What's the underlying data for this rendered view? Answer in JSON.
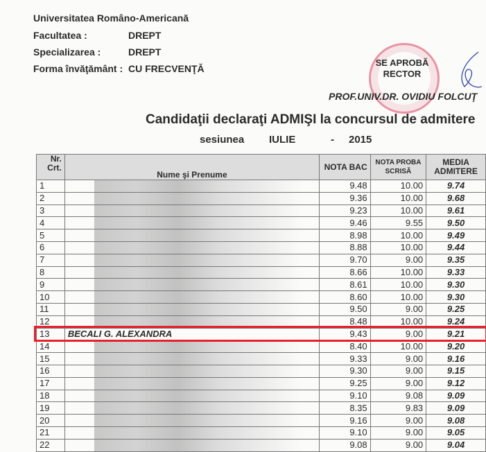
{
  "header": {
    "university": "Universitatea Româno-Americană",
    "faculty_label": "Facultatea :",
    "faculty": "DREPT",
    "spec_label": "Specializarea :",
    "spec": "DREPT",
    "form_label": "Forma învăţământ :",
    "form": "CU FRECVENŢĂ"
  },
  "approval": {
    "line1": "SE APROBĂ",
    "line2": "RECTOR",
    "name": "PROF.UNIV.DR. OVIDIU FOLCUŢ"
  },
  "title": "Candidaţii declaraţi ADMIŞI la concursul de admitere",
  "session": {
    "label": "sesiunea",
    "month": "IULIE",
    "dash": "-",
    "year": "2015"
  },
  "table": {
    "headers": {
      "nr": "Nr. Crt.",
      "name": "Nume şi Prenume",
      "bac": "NOTA BAC",
      "proba": "NOTA PROBA SCRISĂ",
      "media": "MEDIA ADMITERE"
    },
    "rows": [
      [
        "1",
        "",
        "9.48",
        "10.00",
        "9.74"
      ],
      [
        "2",
        "",
        "9.36",
        "10.00",
        "9.68"
      ],
      [
        "3",
        "",
        "9.23",
        "10.00",
        "9.61"
      ],
      [
        "4",
        "",
        "9.46",
        "9.55",
        "9.50"
      ],
      [
        "5",
        "",
        "8.98",
        "10.00",
        "9.49"
      ],
      [
        "6",
        "",
        "8.88",
        "10.00",
        "9.44"
      ],
      [
        "7",
        "",
        "9.70",
        "9.00",
        "9.35"
      ],
      [
        "8",
        "",
        "8.66",
        "10.00",
        "9.33"
      ],
      [
        "9",
        "",
        "8.61",
        "10.00",
        "9.30"
      ],
      [
        "10",
        "",
        "8.60",
        "10.00",
        "9.30"
      ],
      [
        "11",
        "",
        "9.50",
        "9.00",
        "9.25"
      ],
      [
        "12",
        "",
        "8.48",
        "10.00",
        "9.24"
      ],
      [
        "13",
        "BECALI G. ALEXANDRA",
        "9.43",
        "9.00",
        "9.21"
      ],
      [
        "14",
        "",
        "8.40",
        "10.00",
        "9.20"
      ],
      [
        "15",
        "",
        "9.33",
        "9.00",
        "9.16"
      ],
      [
        "16",
        "",
        "9.30",
        "9.00",
        "9.15"
      ],
      [
        "17",
        "",
        "9.25",
        "9.00",
        "9.12"
      ],
      [
        "18",
        "",
        "9.10",
        "9.08",
        "9.09"
      ],
      [
        "19",
        "",
        "8.35",
        "9.83",
        "9.09"
      ],
      [
        "20",
        "",
        "9.16",
        "9.00",
        "9.08"
      ],
      [
        "21",
        "",
        "9.10",
        "9.00",
        "9.05"
      ],
      [
        "22",
        "",
        "9.08",
        "9.00",
        "9.04"
      ]
    ]
  }
}
